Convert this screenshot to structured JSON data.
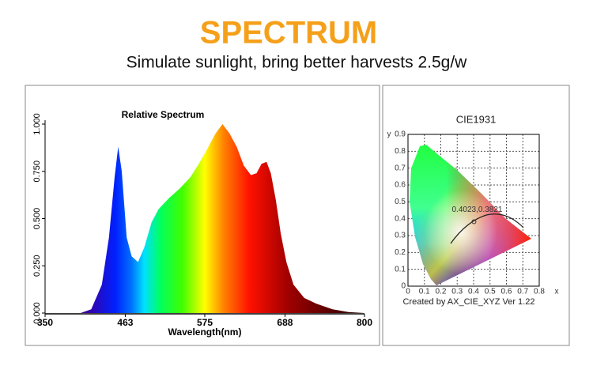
{
  "header": {
    "title": "SPECTRUM",
    "subtitle": "Simulate sunlight, bring better harvests 2.5g/w"
  },
  "chart_data": [
    {
      "type": "area",
      "title": "Relative Spectrum",
      "x_label": "Wavelength(nm)",
      "x": [
        350,
        400,
        415,
        430,
        440,
        448,
        453,
        458,
        465,
        472,
        481,
        490,
        500,
        510,
        525,
        540,
        555,
        565,
        576,
        590,
        600,
        610,
        620,
        630,
        640,
        648,
        655,
        662,
        668,
        675,
        682,
        690,
        700,
        715,
        732,
        755,
        777,
        800
      ],
      "values": [
        0,
        0,
        0.02,
        0.15,
        0.4,
        0.72,
        0.88,
        0.75,
        0.4,
        0.3,
        0.27,
        0.35,
        0.48,
        0.55,
        0.61,
        0.66,
        0.72,
        0.78,
        0.85,
        0.95,
        1.0,
        0.95,
        0.88,
        0.78,
        0.73,
        0.74,
        0.79,
        0.8,
        0.74,
        0.6,
        0.42,
        0.27,
        0.15,
        0.08,
        0.05,
        0.02,
        0.005,
        0
      ],
      "xlim": [
        350,
        800
      ],
      "xticks": [
        350,
        463,
        575,
        688,
        800
      ],
      "ylim": [
        0,
        1
      ],
      "yticks": [
        {
          "value": 0,
          "label": "0.000"
        },
        {
          "value": 0.25,
          "label": "0.250"
        },
        {
          "value": 0.5,
          "label": "0.500"
        },
        {
          "value": 0.75,
          "label": "0.750"
        },
        {
          "value": 1,
          "label": "1.000"
        }
      ]
    },
    {
      "type": "scatter",
      "title": "CIE1931",
      "x_label": "x",
      "y_label": "y",
      "caption": "Created by AX_CIE_XYZ Ver 1.22",
      "series": [
        {
          "color": "#333333",
          "x": [
            0.4023
          ],
          "values": [
            0.3821
          ],
          "value_labels": [
            "0.4023,0.3821"
          ]
        }
      ],
      "xlim": [
        0,
        0.8
      ],
      "xticks": [
        0,
        0.1,
        0.2,
        0.3,
        0.4,
        0.5,
        0.6,
        0.7,
        0.8
      ],
      "ylim": [
        0,
        0.9
      ],
      "yticks": [
        0,
        0.1,
        0.2,
        0.3,
        0.4,
        0.5,
        0.6,
        0.7,
        0.8,
        0.9
      ],
      "grid": true
    }
  ]
}
